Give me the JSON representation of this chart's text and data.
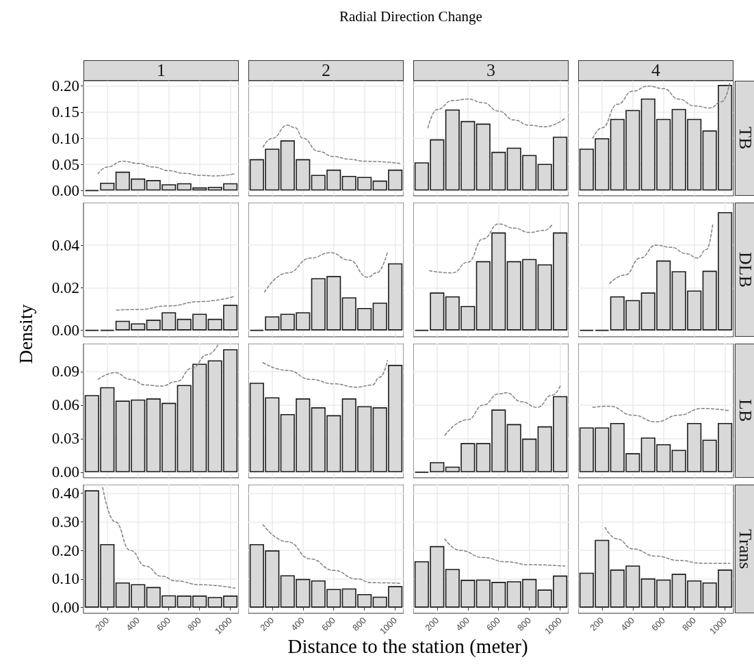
{
  "chart_data": [
    {
      "type": "histogram",
      "title": "1",
      "bins": [
        50,
        150,
        250,
        350,
        450,
        550,
        650,
        750,
        850,
        950,
        1050
      ],
      "xlim": [
        45,
        1055
      ],
      "ylim": [
        -0.01,
        0.21
      ],
      "yticks": [
        {
          "value": 0,
          "label": "0.00"
        },
        {
          "value": 0.05,
          "label": "0.05"
        },
        {
          "value": 0.1,
          "label": "0.10"
        },
        {
          "value": 0.15,
          "label": "0.15"
        },
        {
          "value": 0.2,
          "label": "0.20"
        }
      ],
      "grid": true,
      "tick_labels": "y",
      "series": [
        {
          "colors": [
            "#1a1a1a",
            "#d9d9d9",
            "#d9d9d9",
            "#d9d9d9",
            "#d9d9d9",
            "#d9d9d9",
            "#d9d9d9",
            "#d9d9d9",
            "#d9d9d9",
            "#d9d9d9"
          ],
          "values": [
            0,
            0.015,
            0.036,
            0.023,
            0.02,
            0.012,
            0.014,
            0.006,
            0.007,
            0.014
          ]
        },
        {
          "type": "line",
          "color": "#808080",
          "line_style": "dashed",
          "x": [
            140,
            200,
            300,
            400,
            500,
            600,
            700,
            800,
            900,
            1030
          ],
          "values": [
            0.032,
            0.045,
            0.056,
            0.052,
            0.045,
            0.038,
            0.033,
            0.029,
            0.028,
            0.032
          ]
        }
      ]
    },
    {
      "type": "histogram",
      "title": "2",
      "annotations": [
        "Radial Direction Change"
      ],
      "bins": [
        50,
        150,
        250,
        350,
        450,
        550,
        650,
        750,
        850,
        950,
        1050
      ],
      "xlim": [
        45,
        1055
      ],
      "ylim": [
        -0.01,
        0.21
      ],
      "grid": true,
      "tick_labels": false,
      "series": [
        {
          "color": "#d9d9d9",
          "values": [
            0.06,
            0.08,
            0.096,
            0.06,
            0.03,
            0.04,
            0.028,
            0.026,
            0.019,
            0.04
          ]
        },
        {
          "type": "line",
          "color": "#808080",
          "line_style": "dashed",
          "x": [
            140,
            200,
            300,
            350,
            400,
            500,
            600,
            700,
            800,
            1030
          ],
          "values": [
            0.083,
            0.1,
            0.125,
            0.12,
            0.1,
            0.075,
            0.065,
            0.06,
            0.056,
            0.052
          ]
        }
      ]
    },
    {
      "type": "histogram",
      "title": "3",
      "bins": [
        50,
        150,
        250,
        350,
        450,
        550,
        650,
        750,
        850,
        950,
        1050
      ],
      "xlim": [
        45,
        1055
      ],
      "ylim": [
        -0.01,
        0.21
      ],
      "grid": true,
      "tick_labels": false,
      "series": [
        {
          "color": "#d9d9d9",
          "values": [
            0.054,
            0.098,
            0.155,
            0.133,
            0.128,
            0.074,
            0.082,
            0.068,
            0.051,
            0.103
          ]
        },
        {
          "type": "line",
          "color": "#808080",
          "line_style": "dashed",
          "x": [
            140,
            200,
            300,
            400,
            500,
            600,
            700,
            800,
            900,
            1030
          ],
          "values": [
            0.12,
            0.155,
            0.172,
            0.175,
            0.168,
            0.152,
            0.135,
            0.125,
            0.122,
            0.138
          ]
        }
      ]
    },
    {
      "type": "histogram",
      "title": "4",
      "y2label": "TB",
      "bins": [
        50,
        150,
        250,
        350,
        450,
        550,
        650,
        750,
        850,
        950,
        1050
      ],
      "xlim": [
        45,
        1055
      ],
      "ylim": [
        -0.01,
        0.21
      ],
      "grid": true,
      "tick_labels": false,
      "series": [
        {
          "color": "#d9d9d9",
          "values": [
            0.08,
            0.1,
            0.137,
            0.154,
            0.176,
            0.137,
            0.156,
            0.137,
            0.115,
            0.202
          ]
        },
        {
          "type": "line",
          "color": "#808080",
          "line_style": "dashed",
          "x": [
            140,
            200,
            300,
            400,
            500,
            600,
            700,
            800,
            900,
            980,
            1030
          ],
          "values": [
            0.1,
            0.12,
            0.165,
            0.19,
            0.2,
            0.195,
            0.175,
            0.162,
            0.158,
            0.17,
            0.205
          ]
        }
      ]
    },
    {
      "type": "histogram",
      "ylabel": "Density",
      "bins": [
        50,
        150,
        250,
        350,
        450,
        550,
        650,
        750,
        850,
        950,
        1050
      ],
      "xlim": [
        45,
        1055
      ],
      "ylim": [
        -0.003,
        0.06
      ],
      "yticks": [
        {
          "value": 0,
          "label": "0.00"
        },
        {
          "value": 0.02,
          "label": "0.02"
        },
        {
          "value": 0.04,
          "label": "0.04"
        }
      ],
      "grid": true,
      "tick_labels": "y",
      "series": [
        {
          "colors": [
            "#1a1a1a",
            "#1a1a1a",
            "#d9d9d9",
            "#d9d9d9",
            "#d9d9d9",
            "#d9d9d9",
            "#d9d9d9",
            "#d9d9d9",
            "#d9d9d9",
            "#d9d9d9"
          ],
          "values": [
            0,
            0,
            0.0045,
            0.0033,
            0.005,
            0.0085,
            0.0054,
            0.0078,
            0.0054,
            0.012
          ]
        },
        {
          "type": "line",
          "color": "#808080",
          "line_style": "dashed",
          "x": [
            260,
            400,
            600,
            800,
            1030
          ],
          "values": [
            0.0095,
            0.0098,
            0.0115,
            0.0135,
            0.016
          ]
        }
      ]
    },
    {
      "type": "histogram",
      "bins": [
        50,
        150,
        250,
        350,
        450,
        550,
        650,
        750,
        850,
        950,
        1050
      ],
      "xlim": [
        45,
        1055
      ],
      "ylim": [
        -0.003,
        0.06
      ],
      "grid": true,
      "tick_labels": false,
      "series": [
        {
          "colors": [
            "#1a1a1a",
            "#d9d9d9",
            "#d9d9d9",
            "#d9d9d9",
            "#d9d9d9",
            "#d9d9d9",
            "#d9d9d9",
            "#d9d9d9",
            "#d9d9d9",
            "#d9d9d9"
          ],
          "values": [
            0,
            0.0066,
            0.0078,
            0.0085,
            0.0245,
            0.0255,
            0.0155,
            0.0105,
            0.013,
            0.0315
          ]
        },
        {
          "type": "line",
          "color": "#808080",
          "line_style": "dashed",
          "x": [
            150,
            300,
            450,
            580,
            700,
            820,
            880,
            950
          ],
          "values": [
            0.018,
            0.027,
            0.034,
            0.0365,
            0.033,
            0.025,
            0.027,
            0.037
          ]
        }
      ]
    },
    {
      "type": "histogram",
      "bins": [
        50,
        150,
        250,
        350,
        450,
        550,
        650,
        750,
        850,
        950,
        1050
      ],
      "xlim": [
        45,
        1055
      ],
      "ylim": [
        -0.003,
        0.06
      ],
      "grid": true,
      "tick_labels": false,
      "series": [
        {
          "colors": [
            "#1a1a1a",
            "#d9d9d9",
            "#d9d9d9",
            "#d9d9d9",
            "#d9d9d9",
            "#d9d9d9",
            "#d9d9d9",
            "#d9d9d9",
            "#d9d9d9",
            "#d9d9d9"
          ],
          "values": [
            0,
            0.0178,
            0.016,
            0.0115,
            0.0325,
            0.046,
            0.0325,
            0.0335,
            0.031,
            0.046
          ]
        },
        {
          "type": "line",
          "color": "#808080",
          "line_style": "dashed",
          "x": [
            150,
            300,
            400,
            500,
            600,
            700,
            800,
            900,
            950
          ],
          "values": [
            0.028,
            0.027,
            0.032,
            0.043,
            0.05,
            0.048,
            0.046,
            0.047,
            0.05
          ]
        }
      ]
    },
    {
      "type": "histogram",
      "y2label": "DLB",
      "bins": [
        50,
        150,
        250,
        350,
        450,
        550,
        650,
        750,
        850,
        950,
        1050
      ],
      "xlim": [
        45,
        1055
      ],
      "ylim": [
        -0.003,
        0.06
      ],
      "grid": true,
      "tick_labels": false,
      "series": [
        {
          "colors": [
            "#1a1a1a",
            "#1a1a1a",
            "#d9d9d9",
            "#d9d9d9",
            "#d9d9d9",
            "#d9d9d9",
            "#d9d9d9",
            "#d9d9d9",
            "#d9d9d9",
            "#d9d9d9"
          ],
          "values": [
            0,
            0,
            0.016,
            0.0142,
            0.0178,
            0.0328,
            0.0278,
            0.0187,
            0.028,
            0.0555
          ]
        },
        {
          "type": "line",
          "color": "#808080",
          "line_style": "dashed",
          "x": [
            250,
            350,
            450,
            550,
            650,
            750,
            820,
            880,
            920
          ],
          "values": [
            0.022,
            0.026,
            0.034,
            0.04,
            0.039,
            0.036,
            0.034,
            0.038,
            0.05
          ]
        }
      ]
    },
    {
      "type": "histogram",
      "bins": [
        50,
        150,
        250,
        350,
        450,
        550,
        650,
        750,
        850,
        950,
        1050
      ],
      "xlim": [
        45,
        1055
      ],
      "ylim": [
        -0.005,
        0.115
      ],
      "yticks": [
        {
          "value": 0,
          "label": "0.00"
        },
        {
          "value": 0.03,
          "label": "0.03"
        },
        {
          "value": 0.06,
          "label": "0.06"
        },
        {
          "value": 0.09,
          "label": "0.09"
        }
      ],
      "grid": true,
      "tick_labels": "y",
      "series": [
        {
          "color": "#d9d9d9",
          "values": [
            0.069,
            0.076,
            0.064,
            0.065,
            0.066,
            0.062,
            0.078,
            0.097,
            0.1,
            0.11
          ]
        },
        {
          "type": "line",
          "color": "#808080",
          "line_style": "dashed",
          "x": [
            140,
            250,
            350,
            450,
            550,
            650,
            750,
            850,
            920
          ],
          "values": [
            0.083,
            0.089,
            0.083,
            0.078,
            0.077,
            0.081,
            0.093,
            0.105,
            0.114
          ]
        }
      ]
    },
    {
      "type": "histogram",
      "bins": [
        50,
        150,
        250,
        350,
        450,
        550,
        650,
        750,
        850,
        950,
        1050
      ],
      "xlim": [
        45,
        1055
      ],
      "ylim": [
        -0.005,
        0.115
      ],
      "grid": true,
      "tick_labels": false,
      "series": [
        {
          "color": "#d9d9d9",
          "values": [
            0.08,
            0.067,
            0.052,
            0.066,
            0.058,
            0.051,
            0.066,
            0.059,
            0.058,
            0.096
          ]
        },
        {
          "type": "line",
          "color": "#808080",
          "line_style": "dashed",
          "x": [
            140,
            300,
            450,
            600,
            750,
            850,
            900,
            950
          ],
          "values": [
            0.098,
            0.091,
            0.083,
            0.079,
            0.076,
            0.078,
            0.085,
            0.1
          ]
        }
      ]
    },
    {
      "type": "histogram",
      "bins": [
        50,
        150,
        250,
        350,
        450,
        550,
        650,
        750,
        850,
        950,
        1050
      ],
      "xlim": [
        45,
        1055
      ],
      "ylim": [
        -0.005,
        0.115
      ],
      "grid": true,
      "tick_labels": false,
      "series": [
        {
          "colors": [
            "#1a1a1a",
            "#d9d9d9",
            "#d9d9d9",
            "#d9d9d9",
            "#d9d9d9",
            "#d9d9d9",
            "#d9d9d9",
            "#d9d9d9",
            "#d9d9d9",
            "#d9d9d9"
          ],
          "values": [
            0,
            0.009,
            0.005,
            0.026,
            0.026,
            0.056,
            0.043,
            0.03,
            0.041,
            0.068
          ]
        },
        {
          "type": "line",
          "color": "#808080",
          "line_style": "dashed",
          "x": [
            250,
            400,
            500,
            600,
            650,
            750,
            850,
            950,
            1000
          ],
          "values": [
            0.033,
            0.047,
            0.06,
            0.07,
            0.071,
            0.063,
            0.058,
            0.069,
            0.077
          ]
        }
      ]
    },
    {
      "type": "histogram",
      "y2label": "LB",
      "bins": [
        50,
        150,
        250,
        350,
        450,
        550,
        650,
        750,
        850,
        950,
        1050
      ],
      "xlim": [
        45,
        1055
      ],
      "ylim": [
        -0.005,
        0.115
      ],
      "grid": true,
      "tick_labels": false,
      "series": [
        {
          "color": "#d9d9d9",
          "values": [
            0.04,
            0.04,
            0.044,
            0.017,
            0.031,
            0.025,
            0.02,
            0.044,
            0.029,
            0.044
          ]
        },
        {
          "type": "line",
          "color": "#808080",
          "line_style": "dashed",
          "x": [
            140,
            250,
            400,
            550,
            700,
            850,
            1030
          ],
          "values": [
            0.058,
            0.059,
            0.051,
            0.045,
            0.051,
            0.057,
            0.055
          ]
        }
      ]
    },
    {
      "type": "histogram",
      "bins": [
        50,
        150,
        250,
        350,
        450,
        550,
        650,
        750,
        850,
        950,
        1050
      ],
      "xlim": [
        45,
        1055
      ],
      "xticks": [
        200,
        400,
        600,
        800,
        1000
      ],
      "ylim": [
        -0.02,
        0.43
      ],
      "yticks": [
        {
          "value": 0,
          "label": "0.00"
        },
        {
          "value": 0.1,
          "label": "0.10"
        },
        {
          "value": 0.2,
          "label": "0.20"
        },
        {
          "value": 0.3,
          "label": "0.30"
        },
        {
          "value": 0.4,
          "label": "0.40"
        }
      ],
      "grid": true,
      "series": [
        {
          "color": "#d9d9d9",
          "values": [
            0.41,
            0.222,
            0.088,
            0.082,
            0.072,
            0.043,
            0.042,
            0.042,
            0.037,
            0.042
          ]
        },
        {
          "type": "line",
          "color": "#808080",
          "line_style": "dashed",
          "x": [
            170,
            250,
            350,
            450,
            550,
            650,
            800,
            1030
          ],
          "values": [
            0.42,
            0.3,
            0.2,
            0.145,
            0.11,
            0.093,
            0.08,
            0.068
          ]
        }
      ]
    },
    {
      "type": "histogram",
      "xlabel": "Distance to the station (meter)",
      "bins": [
        50,
        150,
        250,
        350,
        450,
        550,
        650,
        750,
        850,
        950,
        1050
      ],
      "xlim": [
        45,
        1055
      ],
      "xticks": [
        200,
        400,
        600,
        800,
        1000
      ],
      "ylim": [
        -0.02,
        0.43
      ],
      "grid": true,
      "tick_labels": "x",
      "series": [
        {
          "color": "#d9d9d9",
          "values": [
            0.222,
            0.2,
            0.113,
            0.1,
            0.095,
            0.065,
            0.067,
            0.047,
            0.038,
            0.075
          ]
        },
        {
          "type": "line",
          "color": "#808080",
          "line_style": "dashed",
          "x": [
            140,
            300,
            450,
            600,
            750,
            850,
            1030
          ],
          "values": [
            0.29,
            0.23,
            0.17,
            0.13,
            0.1,
            0.087,
            0.085
          ]
        }
      ]
    },
    {
      "type": "histogram",
      "bins": [
        50,
        150,
        250,
        350,
        450,
        550,
        650,
        750,
        850,
        950,
        1050
      ],
      "xlim": [
        45,
        1055
      ],
      "xticks": [
        200,
        400,
        600,
        800,
        1000
      ],
      "ylim": [
        -0.02,
        0.43
      ],
      "grid": true,
      "tick_labels": "x",
      "series": [
        {
          "color": "#d9d9d9",
          "values": [
            0.162,
            0.215,
            0.135,
            0.097,
            0.098,
            0.09,
            0.092,
            0.1,
            0.063,
            0.112
          ]
        },
        {
          "type": "line",
          "color": "#808080",
          "line_style": "dashed",
          "x": [
            250,
            350,
            500,
            650,
            800,
            1030
          ],
          "values": [
            0.24,
            0.2,
            0.175,
            0.16,
            0.15,
            0.145
          ]
        }
      ]
    },
    {
      "type": "histogram",
      "y2label": "Trans",
      "bins": [
        50,
        150,
        250,
        350,
        450,
        550,
        650,
        750,
        850,
        950,
        1050
      ],
      "xlim": [
        45,
        1055
      ],
      "xticks": [
        200,
        400,
        600,
        800,
        1000
      ],
      "ylim": [
        -0.02,
        0.43
      ],
      "grid": true,
      "tick_labels": "x",
      "series": [
        {
          "color": "#d9d9d9",
          "values": [
            0.122,
            0.237,
            0.133,
            0.147,
            0.102,
            0.098,
            0.118,
            0.095,
            0.088,
            0.133
          ]
        },
        {
          "type": "line",
          "color": "#808080",
          "line_style": "dashed",
          "x": [
            220,
            300,
            400,
            550,
            700,
            850,
            1030
          ],
          "values": [
            0.28,
            0.24,
            0.205,
            0.18,
            0.165,
            0.155,
            0.155
          ]
        }
      ]
    }
  ]
}
